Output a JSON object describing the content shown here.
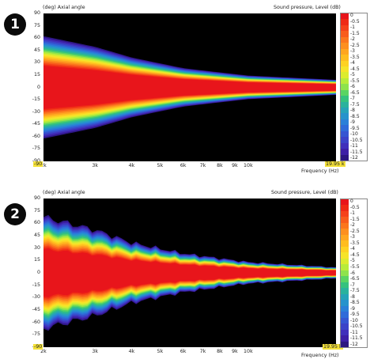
{
  "chart_data": [
    {
      "type": "heatmap",
      "badge": "1",
      "axis_label_left": "(deg) Axial angle",
      "axis_label_right": "Sound pressure, Level (dB)",
      "ylim": [
        -90,
        90
      ],
      "yticks": [
        "90",
        "75",
        "60",
        "45",
        "30",
        "15",
        "0",
        "-15",
        "-30",
        "-45",
        "-60",
        "-75",
        "-90"
      ],
      "xlim": [
        2000,
        19950
      ],
      "x_scale": "log",
      "xticks": [
        "2k",
        "3k",
        "4k",
        "5k",
        "6k",
        "7k",
        "8k",
        "9k",
        "10k"
      ],
      "x_start_label": "-90",
      "x_end_label": "19.95 k",
      "xlabel": "Frequency (Hz)",
      "colorbar_ticks": [
        "0",
        "-0.5",
        "-1",
        "-1.5",
        "-2",
        "-2.5",
        "-3",
        "-3.5",
        "-4",
        "-4.5",
        "-5",
        "-5.5",
        "-6",
        "-6.5",
        "-7",
        "-7.5",
        "-8",
        "-8.5",
        "-9",
        "-9.5",
        "-10",
        "-10.5",
        "-11",
        "-11.5",
        "-12"
      ],
      "coverage_half_width_deg": [
        {
          "freq": 2000,
          "half_width": 48
        },
        {
          "freq": 3000,
          "half_width": 38
        },
        {
          "freq": 4000,
          "half_width": 28
        },
        {
          "freq": 6000,
          "half_width": 18
        },
        {
          "freq": 10000,
          "half_width": 11
        },
        {
          "freq": 19950,
          "half_width": 7
        }
      ]
    },
    {
      "type": "heatmap",
      "badge": "2",
      "axis_label_left": "(deg) Axial angle",
      "axis_label_right": "Sound pressure, Level (dB)",
      "ylim": [
        -90,
        90
      ],
      "yticks": [
        "90",
        "75",
        "60",
        "45",
        "30",
        "15",
        "0",
        "-15",
        "-30",
        "-45",
        "-60",
        "-75",
        "-90"
      ],
      "xlim": [
        2000,
        19950
      ],
      "x_scale": "log",
      "xticks": [
        "2k",
        "3k",
        "4k",
        "5k",
        "6k",
        "7k",
        "8k",
        "9k",
        "10k"
      ],
      "x_start_label": "-90",
      "x_end_label": "19.95 k",
      "xlabel": "Frequency (Hz)",
      "colorbar_ticks": [
        "0",
        "-0.5",
        "-1",
        "-1.5",
        "-2",
        "-2.5",
        "-3",
        "-3.5",
        "-4",
        "-4.5",
        "-5",
        "-5.5",
        "-6",
        "-6.5",
        "-7",
        "-7.5",
        "-8",
        "-8.5",
        "-9",
        "-9.5",
        "-10",
        "-10.5",
        "-11",
        "-11.5",
        "-12"
      ],
      "coverage_half_width_deg": [
        {
          "freq": 2000,
          "half_width": 52
        },
        {
          "freq": 3000,
          "half_width": 40
        },
        {
          "freq": 4000,
          "half_width": 28
        },
        {
          "freq": 6000,
          "half_width": 18
        },
        {
          "freq": 10000,
          "half_width": 10
        },
        {
          "freq": 19950,
          "half_width": 5
        }
      ]
    }
  ],
  "colors": {
    "scale": [
      "#e8151b",
      "#ef2a15",
      "#f5421a",
      "#f85c1c",
      "#fb761d",
      "#fd8f1f",
      "#ffa620",
      "#ffbd20",
      "#fed223",
      "#f6e42a",
      "#dcec2f",
      "#b8ec3a",
      "#8ee34c",
      "#5ad463",
      "#35c27e",
      "#2ab29d",
      "#26a3b8",
      "#2693cc",
      "#2a80d8",
      "#2f6bd9",
      "#3556d2",
      "#3b43c8",
      "#402fbb",
      "#3d1fa6",
      "#2c1681"
    ],
    "plot_bg": "#000000",
    "highlight": "#f4e13a"
  }
}
